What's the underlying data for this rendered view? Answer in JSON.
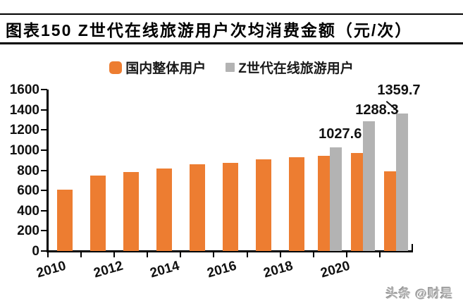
{
  "header": {
    "title": "图表150  Z世代在线旅游用户次均消费金额（元/次）"
  },
  "legend": [
    {
      "label": "国内整体用户",
      "color": "#ed7d31"
    },
    {
      "label": "Z世代在线旅游用户",
      "color": "#b3b3b3"
    }
  ],
  "watermark": "头条 @财是",
  "chart_data": {
    "type": "bar",
    "title": "图表150 Z世代在线旅游用户次均消费金额（元/次）",
    "categories": [
      "2010",
      "2011",
      "2012",
      "2013",
      "2014",
      "2015",
      "2016",
      "2017",
      "2018",
      "2019",
      "2020"
    ],
    "series": [
      {
        "name": "国内整体用户",
        "color": "#ed7d31",
        "values": [
          610,
          750,
          780,
          815,
          860,
          875,
          905,
          930,
          945,
          970,
          790
        ]
      },
      {
        "name": "Z世代在线旅游用户",
        "color": "#b3b3b3",
        "values": [
          null,
          null,
          null,
          null,
          null,
          null,
          null,
          null,
          1027.6,
          1288.3,
          1359.7
        ]
      }
    ],
    "data_labels": [
      "1027.6",
      "1288.3",
      "1359.7"
    ],
    "ylim": [
      0,
      1600
    ],
    "ytick_step": 200,
    "y_tick_labels": [
      "0",
      "200",
      "400",
      "600",
      "800",
      "1000",
      "1200",
      "1400",
      "1600"
    ],
    "x_tick_labels": [
      "2010",
      "2012",
      "2014",
      "2016",
      "2018",
      "2020"
    ],
    "grid": false,
    "legend_position": "top"
  }
}
